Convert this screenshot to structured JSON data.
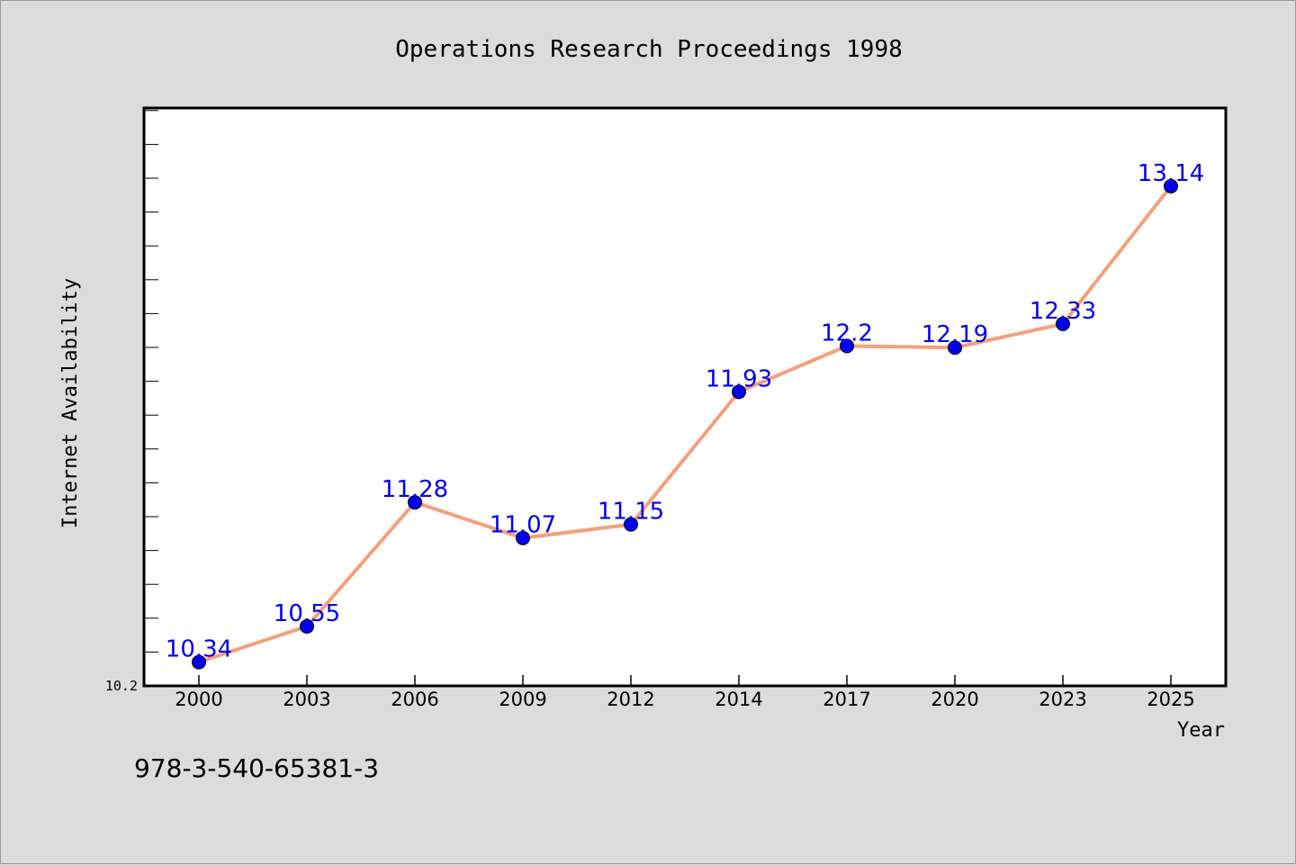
{
  "chart_data": {
    "type": "line",
    "title": "Operations Research Proceedings 1998",
    "xlabel": "Year",
    "ylabel": "Internet Availability",
    "categories": [
      "2000",
      "2003",
      "2006",
      "2009",
      "2012",
      "2014",
      "2017",
      "2020",
      "2023",
      "2025"
    ],
    "series": [
      {
        "values": [
          10.34,
          10.55,
          11.28,
          11.07,
          11.15,
          11.93,
          12.2,
          12.19,
          12.33,
          13.14
        ]
      }
    ],
    "data_labels": [
      "10.34",
      "10.55",
      "11.28",
      "11.07",
      "11.15",
      "11.93",
      "12.2",
      "12.19",
      "12.33",
      "13.14"
    ],
    "ylim": [
      10.2,
      13.6
    ],
    "y_tick_label": "10.2",
    "grid": false,
    "legend": "none",
    "colors": {
      "line": "#f4a07c",
      "marker": "#0000ee",
      "data_label": "#0000ee",
      "plot_background": "#ffffff",
      "page_background": "#dcdcdc"
    }
  },
  "footer": {
    "isbn": "978-3-540-65381-3"
  }
}
